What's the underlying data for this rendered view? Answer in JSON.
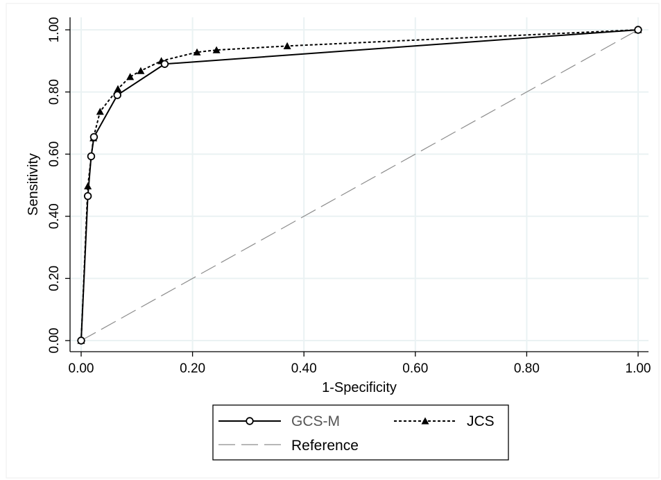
{
  "chart_data": {
    "type": "line",
    "title": "",
    "xlabel": "1-Specificity",
    "ylabel": "Sensitivity",
    "xlim": [
      0,
      1
    ],
    "ylim": [
      0,
      1
    ],
    "x_ticks": [
      "0.00",
      "0.20",
      "0.40",
      "0.60",
      "0.80",
      "1.00"
    ],
    "y_ticks": [
      "0.00",
      "0.20",
      "0.40",
      "0.60",
      "0.80",
      "1.00"
    ],
    "grid": true,
    "legend_position": "bottom",
    "series": [
      {
        "name": "GCS-M",
        "line_style": "solid",
        "marker": "hollow-circle",
        "color": "#000000",
        "points": [
          {
            "x": 0.0,
            "y": 0.0
          },
          {
            "x": 0.012,
            "y": 0.465
          },
          {
            "x": 0.018,
            "y": 0.593
          },
          {
            "x": 0.023,
            "y": 0.655
          },
          {
            "x": 0.065,
            "y": 0.79
          },
          {
            "x": 0.15,
            "y": 0.89
          },
          {
            "x": 1.0,
            "y": 1.0
          }
        ]
      },
      {
        "name": "JCS",
        "line_style": "dotted",
        "marker": "filled-triangle",
        "color": "#000000",
        "points": [
          {
            "x": 0.0,
            "y": 0.0
          },
          {
            "x": 0.012,
            "y": 0.497
          },
          {
            "x": 0.022,
            "y": 0.652
          },
          {
            "x": 0.034,
            "y": 0.737
          },
          {
            "x": 0.066,
            "y": 0.81
          },
          {
            "x": 0.088,
            "y": 0.849
          },
          {
            "x": 0.107,
            "y": 0.868
          },
          {
            "x": 0.144,
            "y": 0.9
          },
          {
            "x": 0.208,
            "y": 0.928
          },
          {
            "x": 0.243,
            "y": 0.935
          },
          {
            "x": 0.37,
            "y": 0.948
          },
          {
            "x": 1.0,
            "y": 1.0
          }
        ]
      },
      {
        "name": "Reference",
        "line_style": "long-dash",
        "marker": "none",
        "color": "#8c8c8c",
        "points": [
          {
            "x": 0.0,
            "y": 0.0
          },
          {
            "x": 1.0,
            "y": 1.0
          }
        ]
      }
    ]
  }
}
